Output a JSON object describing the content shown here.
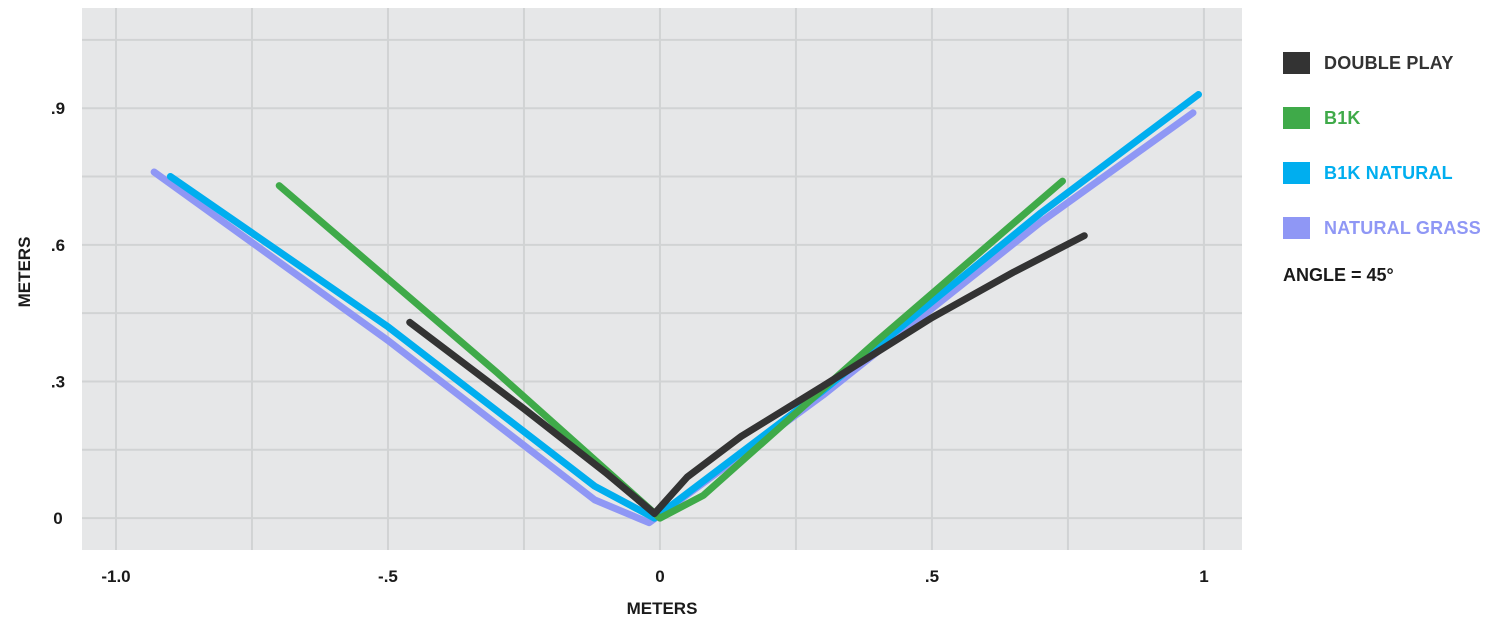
{
  "chart_data": {
    "type": "line",
    "xlabel": "METERS",
    "ylabel": "METERS",
    "xlim": [
      -1.0625,
      1.07
    ],
    "ylim": [
      -0.07,
      1.12
    ],
    "x_ticks": [
      {
        "value": -1.0,
        "label": "-1.0"
      },
      {
        "value": -0.5,
        "label": "-.5"
      },
      {
        "value": 0,
        "label": "0"
      },
      {
        "value": 0.5,
        "label": ".5"
      },
      {
        "value": 1.0,
        "label": "1"
      }
    ],
    "y_ticks": [
      {
        "value": 0,
        "label": "0"
      },
      {
        "value": 0.3,
        "label": ".3"
      },
      {
        "value": 0.6,
        "label": ".6"
      },
      {
        "value": 0.9,
        "label": ".9"
      }
    ],
    "grid": true,
    "legend_position": "right",
    "annotation": "ANGLE = 45°",
    "series": [
      {
        "name": "DOUBLE PLAY",
        "color": "#333333",
        "points": [
          [
            -0.46,
            0.43
          ],
          [
            -0.25,
            0.24
          ],
          [
            -0.1,
            0.1
          ],
          [
            -0.01,
            0.01
          ],
          [
            0.05,
            0.09
          ],
          [
            0.15,
            0.18
          ],
          [
            0.3,
            0.29
          ],
          [
            0.5,
            0.44
          ],
          [
            0.65,
            0.54
          ],
          [
            0.78,
            0.62
          ]
        ]
      },
      {
        "name": "B1K",
        "color": "#3faa49",
        "points": [
          [
            -0.7,
            0.73
          ],
          [
            -0.3,
            0.32
          ],
          [
            0.0,
            0.0
          ],
          [
            0.08,
            0.05
          ],
          [
            0.4,
            0.39
          ],
          [
            0.74,
            0.74
          ]
        ]
      },
      {
        "name": "B1K NATURAL",
        "color": "#00aeef",
        "points": [
          [
            -0.9,
            0.75
          ],
          [
            -0.5,
            0.42
          ],
          [
            -0.12,
            0.07
          ],
          [
            -0.01,
            0.0
          ],
          [
            0.3,
            0.28
          ],
          [
            0.7,
            0.67
          ],
          [
            0.99,
            0.93
          ]
        ]
      },
      {
        "name": "NATURAL GRASS",
        "color": "#8f97f5",
        "points": [
          [
            -0.93,
            0.76
          ],
          [
            -0.5,
            0.39
          ],
          [
            -0.12,
            0.04
          ],
          [
            -0.02,
            -0.01
          ],
          [
            0.3,
            0.27
          ],
          [
            0.7,
            0.65
          ],
          [
            0.98,
            0.89
          ]
        ]
      }
    ]
  }
}
